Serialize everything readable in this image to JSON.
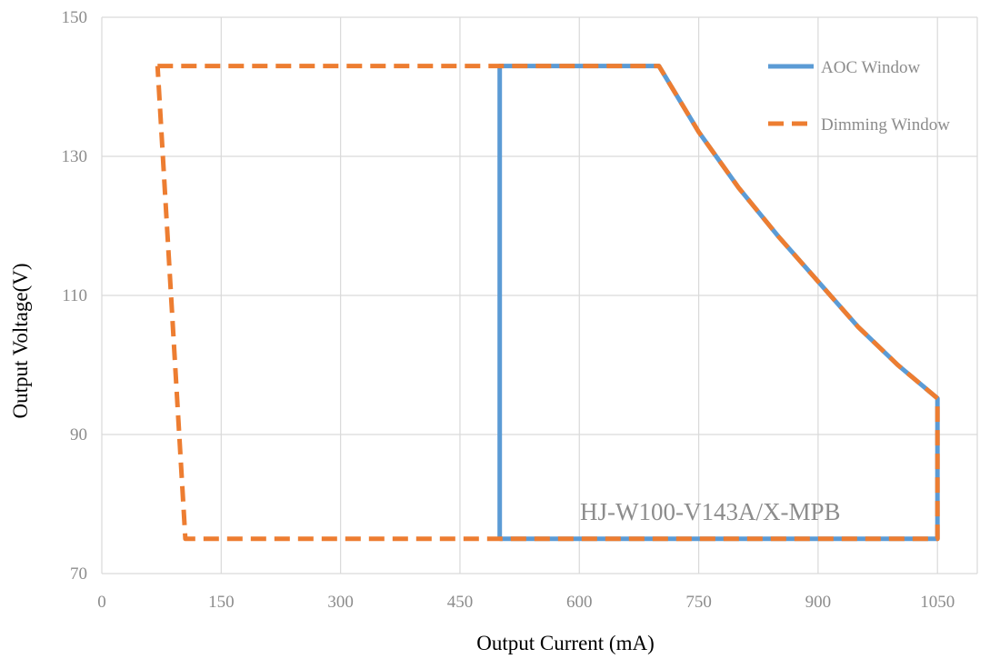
{
  "chart_data": {
    "type": "line",
    "title": "",
    "xlabel": "Output Current (mA)",
    "ylabel": "Output Voltage(V)",
    "xlim": [
      0,
      1100
    ],
    "ylim": [
      70,
      150
    ],
    "xticks": [
      0,
      150,
      300,
      450,
      600,
      750,
      900,
      1050
    ],
    "yticks": [
      70,
      90,
      110,
      130,
      150
    ],
    "grid": true,
    "legend_position": "top-right",
    "annotation": "HJ-W100-V143A/X-MPB",
    "series": [
      {
        "name": "AOC Window",
        "color": "#5b9bd5",
        "style": "solid",
        "points": [
          [
            500,
            75
          ],
          [
            500,
            143
          ],
          [
            700,
            143
          ],
          [
            750,
            133.5
          ],
          [
            800,
            125.5
          ],
          [
            850,
            118.5
          ],
          [
            900,
            112
          ],
          [
            950,
            105.5
          ],
          [
            1000,
            100
          ],
          [
            1050,
            95.2
          ],
          [
            1050,
            75
          ],
          [
            500,
            75
          ]
        ]
      },
      {
        "name": "Dimming Window",
        "color": "#ed7d31",
        "style": "dashed",
        "points": [
          [
            70,
            143
          ],
          [
            700,
            143
          ],
          [
            750,
            133.5
          ],
          [
            800,
            125.5
          ],
          [
            850,
            118.5
          ],
          [
            900,
            112
          ],
          [
            950,
            105.5
          ],
          [
            1000,
            100
          ],
          [
            1050,
            95.2
          ],
          [
            1050,
            75
          ],
          [
            105,
            75
          ],
          [
            70,
            143
          ]
        ]
      }
    ]
  }
}
